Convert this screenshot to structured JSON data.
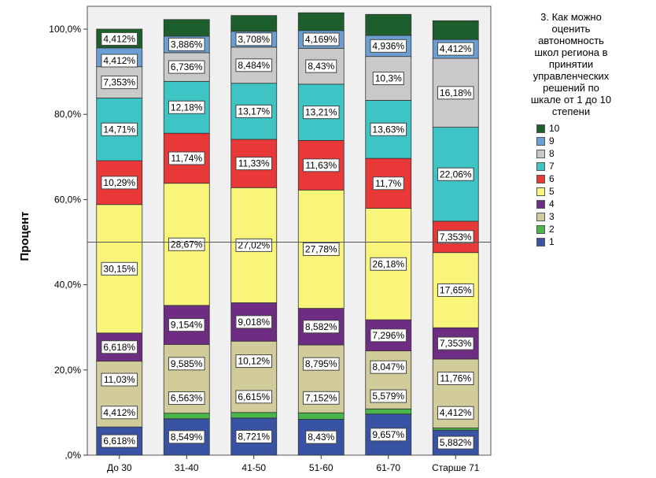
{
  "chart_data": {
    "type": "bar",
    "stacked": true,
    "categories": [
      "До 30",
      "31-40",
      "41-50",
      "51-60",
      "61-70",
      "Старше 71"
    ],
    "ylabel": "Процент",
    "xlabel": "",
    "ylim": [
      0,
      100
    ],
    "yticks": [
      ",0%",
      "20,0%",
      "40,0%",
      "60,0%",
      "80,0%",
      "100,0%"
    ],
    "grid": false,
    "reference_line": 50,
    "legend_title": "3. Как можно\nоценить\nавтономность\nшкол  региона в\nпринятии\nуправленческих\nрешений по\nшкале от 1 до 10\nстепени",
    "legend_placement": "right",
    "legend_order": [
      "10",
      "9",
      "8",
      "7",
      "6",
      "5",
      "4",
      "3",
      "2",
      "1"
    ],
    "series": [
      {
        "name": "1",
        "color": "#3953a4",
        "values": [
          6.618,
          8.549,
          8.721,
          8.43,
          9.657,
          5.882
        ],
        "labels": [
          "6,618%",
          "8,549%",
          "8,721%",
          "8,43%",
          "9,657%",
          "5,882%"
        ]
      },
      {
        "name": "2",
        "color": "#48b648",
        "values": [
          0,
          1.3,
          1.3,
          1.5,
          1.2,
          0.5
        ],
        "labels": [
          "",
          "",
          "",
          "",
          "",
          ""
        ]
      },
      {
        "name": "3",
        "color": "#d2cc9a",
        "values": [
          15.442,
          16.148,
          16.735,
          15.947,
          13.626,
          16.172
        ],
        "labels": [
          "4,412%",
          "6,563%",
          "6,615%",
          "7,152%",
          "5,579%",
          "4,412%"
        ]
      },
      {
        "name": "",
        "color": "#d2cc9a",
        "values": [
          0,
          0,
          0,
          0,
          0,
          0
        ],
        "labels": [
          "11,03%",
          "9,585%",
          "10,12%",
          "8,795%",
          "8,047%",
          "11,76%"
        ]
      },
      {
        "name": "4",
        "color": "#6e2c82",
        "values": [
          6.618,
          9.154,
          9.018,
          8.582,
          7.296,
          7.353
        ],
        "labels": [
          "6,618%",
          "9,154%",
          "9,018%",
          "8,582%",
          "7,296%",
          "7,353%"
        ]
      },
      {
        "name": "5",
        "color": "#f8f57a",
        "values": [
          30.15,
          28.67,
          27.02,
          27.78,
          26.18,
          17.65
        ],
        "labels": [
          "30,15%",
          "28,67%",
          "27,02%",
          "27,78%",
          "26,18%",
          "17,65%"
        ]
      },
      {
        "name": "6",
        "color": "#e83838",
        "values": [
          10.29,
          11.74,
          11.33,
          11.63,
          11.7,
          7.353
        ],
        "labels": [
          "10,29%",
          "11,74%",
          "11,33%",
          "11,63%",
          "11,7%",
          "7,353%"
        ]
      },
      {
        "name": "7",
        "color": "#3ec4c4",
        "values": [
          14.71,
          12.18,
          13.17,
          13.21,
          13.63,
          22.06
        ],
        "labels": [
          "14,71%",
          "12,18%",
          "13,17%",
          "13,21%",
          "13,63%",
          "22,06%"
        ]
      },
      {
        "name": "8",
        "color": "#c9c9c9",
        "values": [
          7.353,
          6.736,
          8.484,
          8.43,
          10.3,
          16.18
        ],
        "labels": [
          "7,353%",
          "6,736%",
          "8,484%",
          "8,43%",
          "10,3%",
          "16,18%"
        ]
      },
      {
        "name": "9",
        "color": "#6b9fd4",
        "values": [
          4.412,
          3.886,
          3.708,
          4.169,
          4.936,
          4.412
        ],
        "labels": [
          "4,412%",
          "3,886%",
          "3,708%",
          "4,169%",
          "4,936%",
          "4,412%"
        ]
      },
      {
        "name": "10",
        "color": "#1c5e2c",
        "values": [
          4.412,
          3.886,
          3.708,
          4.169,
          4.936,
          4.412
        ],
        "labels": [
          "4,412%",
          "",
          "",
          "",
          "",
          ""
        ]
      }
    ]
  },
  "legend": {
    "title": "3. Как можно\nоценить\nавтономность\nшкол  региона в\nпринятии\nуправленческих\nрешений по\nшкале от 1 до 10\nстепени",
    "items": [
      {
        "label": "10",
        "color": "#1c5e2c"
      },
      {
        "label": "9",
        "color": "#6b9fd4"
      },
      {
        "label": "8",
        "color": "#c9c9c9"
      },
      {
        "label": "7",
        "color": "#3ec4c4"
      },
      {
        "label": "6",
        "color": "#e83838"
      },
      {
        "label": "5",
        "color": "#f8f57a"
      },
      {
        "label": "4",
        "color": "#6e2c82"
      },
      {
        "label": "3",
        "color": "#d2cc9a"
      },
      {
        "label": "2",
        "color": "#48b648"
      },
      {
        "label": "1",
        "color": "#3953a4"
      }
    ]
  }
}
